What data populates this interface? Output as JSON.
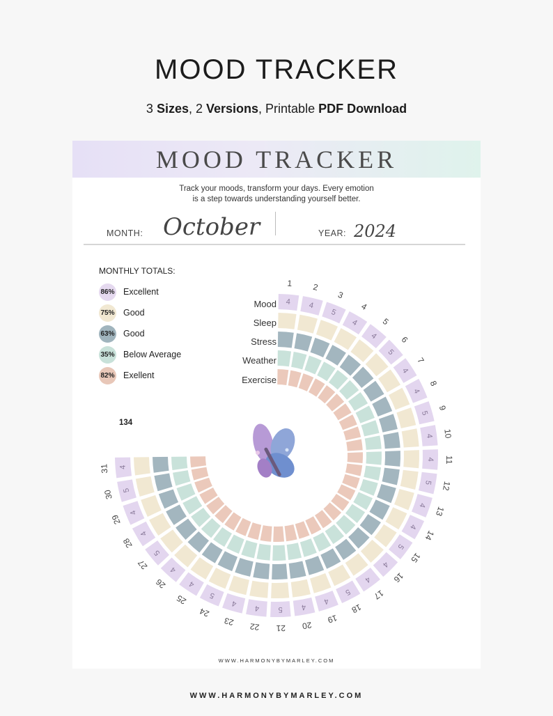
{
  "header": {
    "title": "MOOD TRACKER",
    "subtitle_parts": [
      "3 ",
      "Sizes",
      ", 2 ",
      "Versions",
      ", Printable ",
      "PDF Download"
    ]
  },
  "sheet": {
    "banner_title": "MOOD TRACKER",
    "tagline_line1": "Track your moods, transform your days. Every emotion",
    "tagline_line2": "is a step towards understanding yourself better.",
    "month_label": "MONTH:",
    "month_value": "October",
    "year_label": "YEAR:",
    "year_value": "2024",
    "totals_title": "MONTHLY TOTALS:",
    "footer_url": "WWW.HARMONYBYMARLEY.COM"
  },
  "legend": [
    {
      "percent": "86%",
      "label": "Excellent",
      "color": "#e5d9ef"
    },
    {
      "percent": "75%",
      "label": "Good",
      "color": "#f1e8d2"
    },
    {
      "percent": "63%",
      "label": "Good",
      "color": "#a0b4bd"
    },
    {
      "percent": "35%",
      "label": "Below Average",
      "color": "#c8e1d9"
    },
    {
      "percent": "82%",
      "label": "Exellent",
      "color": "#e8c7b8"
    }
  ],
  "wheel": {
    "rings": [
      {
        "name": "Mood",
        "color": "#e3d6ef"
      },
      {
        "name": "Sleep",
        "color": "#f1e8d2"
      },
      {
        "name": "Stress",
        "color": "#a3b6bf"
      },
      {
        "name": "Weather",
        "color": "#c9e2da"
      },
      {
        "name": "Exercise",
        "color": "#ebc9bb"
      }
    ],
    "days": [
      "1",
      "2",
      "3",
      "4",
      "5",
      "6",
      "7",
      "8",
      "9",
      "10",
      "11",
      "12",
      "13",
      "14",
      "15",
      "16",
      "17",
      "18",
      "19",
      "20",
      "21",
      "22",
      "23",
      "24",
      "25",
      "26",
      "27",
      "28",
      "29",
      "30",
      "31"
    ],
    "mood_scores": [
      "4",
      "4",
      "5",
      "4",
      "4",
      "5",
      "4",
      "4",
      "5",
      "4",
      "4",
      "5",
      "4",
      "4",
      "5",
      "4",
      "4",
      "5",
      "4",
      "4",
      "5",
      "4",
      "4",
      "5",
      "4",
      "4",
      "5",
      "4",
      "4",
      "5",
      "4"
    ],
    "total": "134"
  },
  "bottom_url": "WWW.HARMONYBYMARLEY.COM"
}
